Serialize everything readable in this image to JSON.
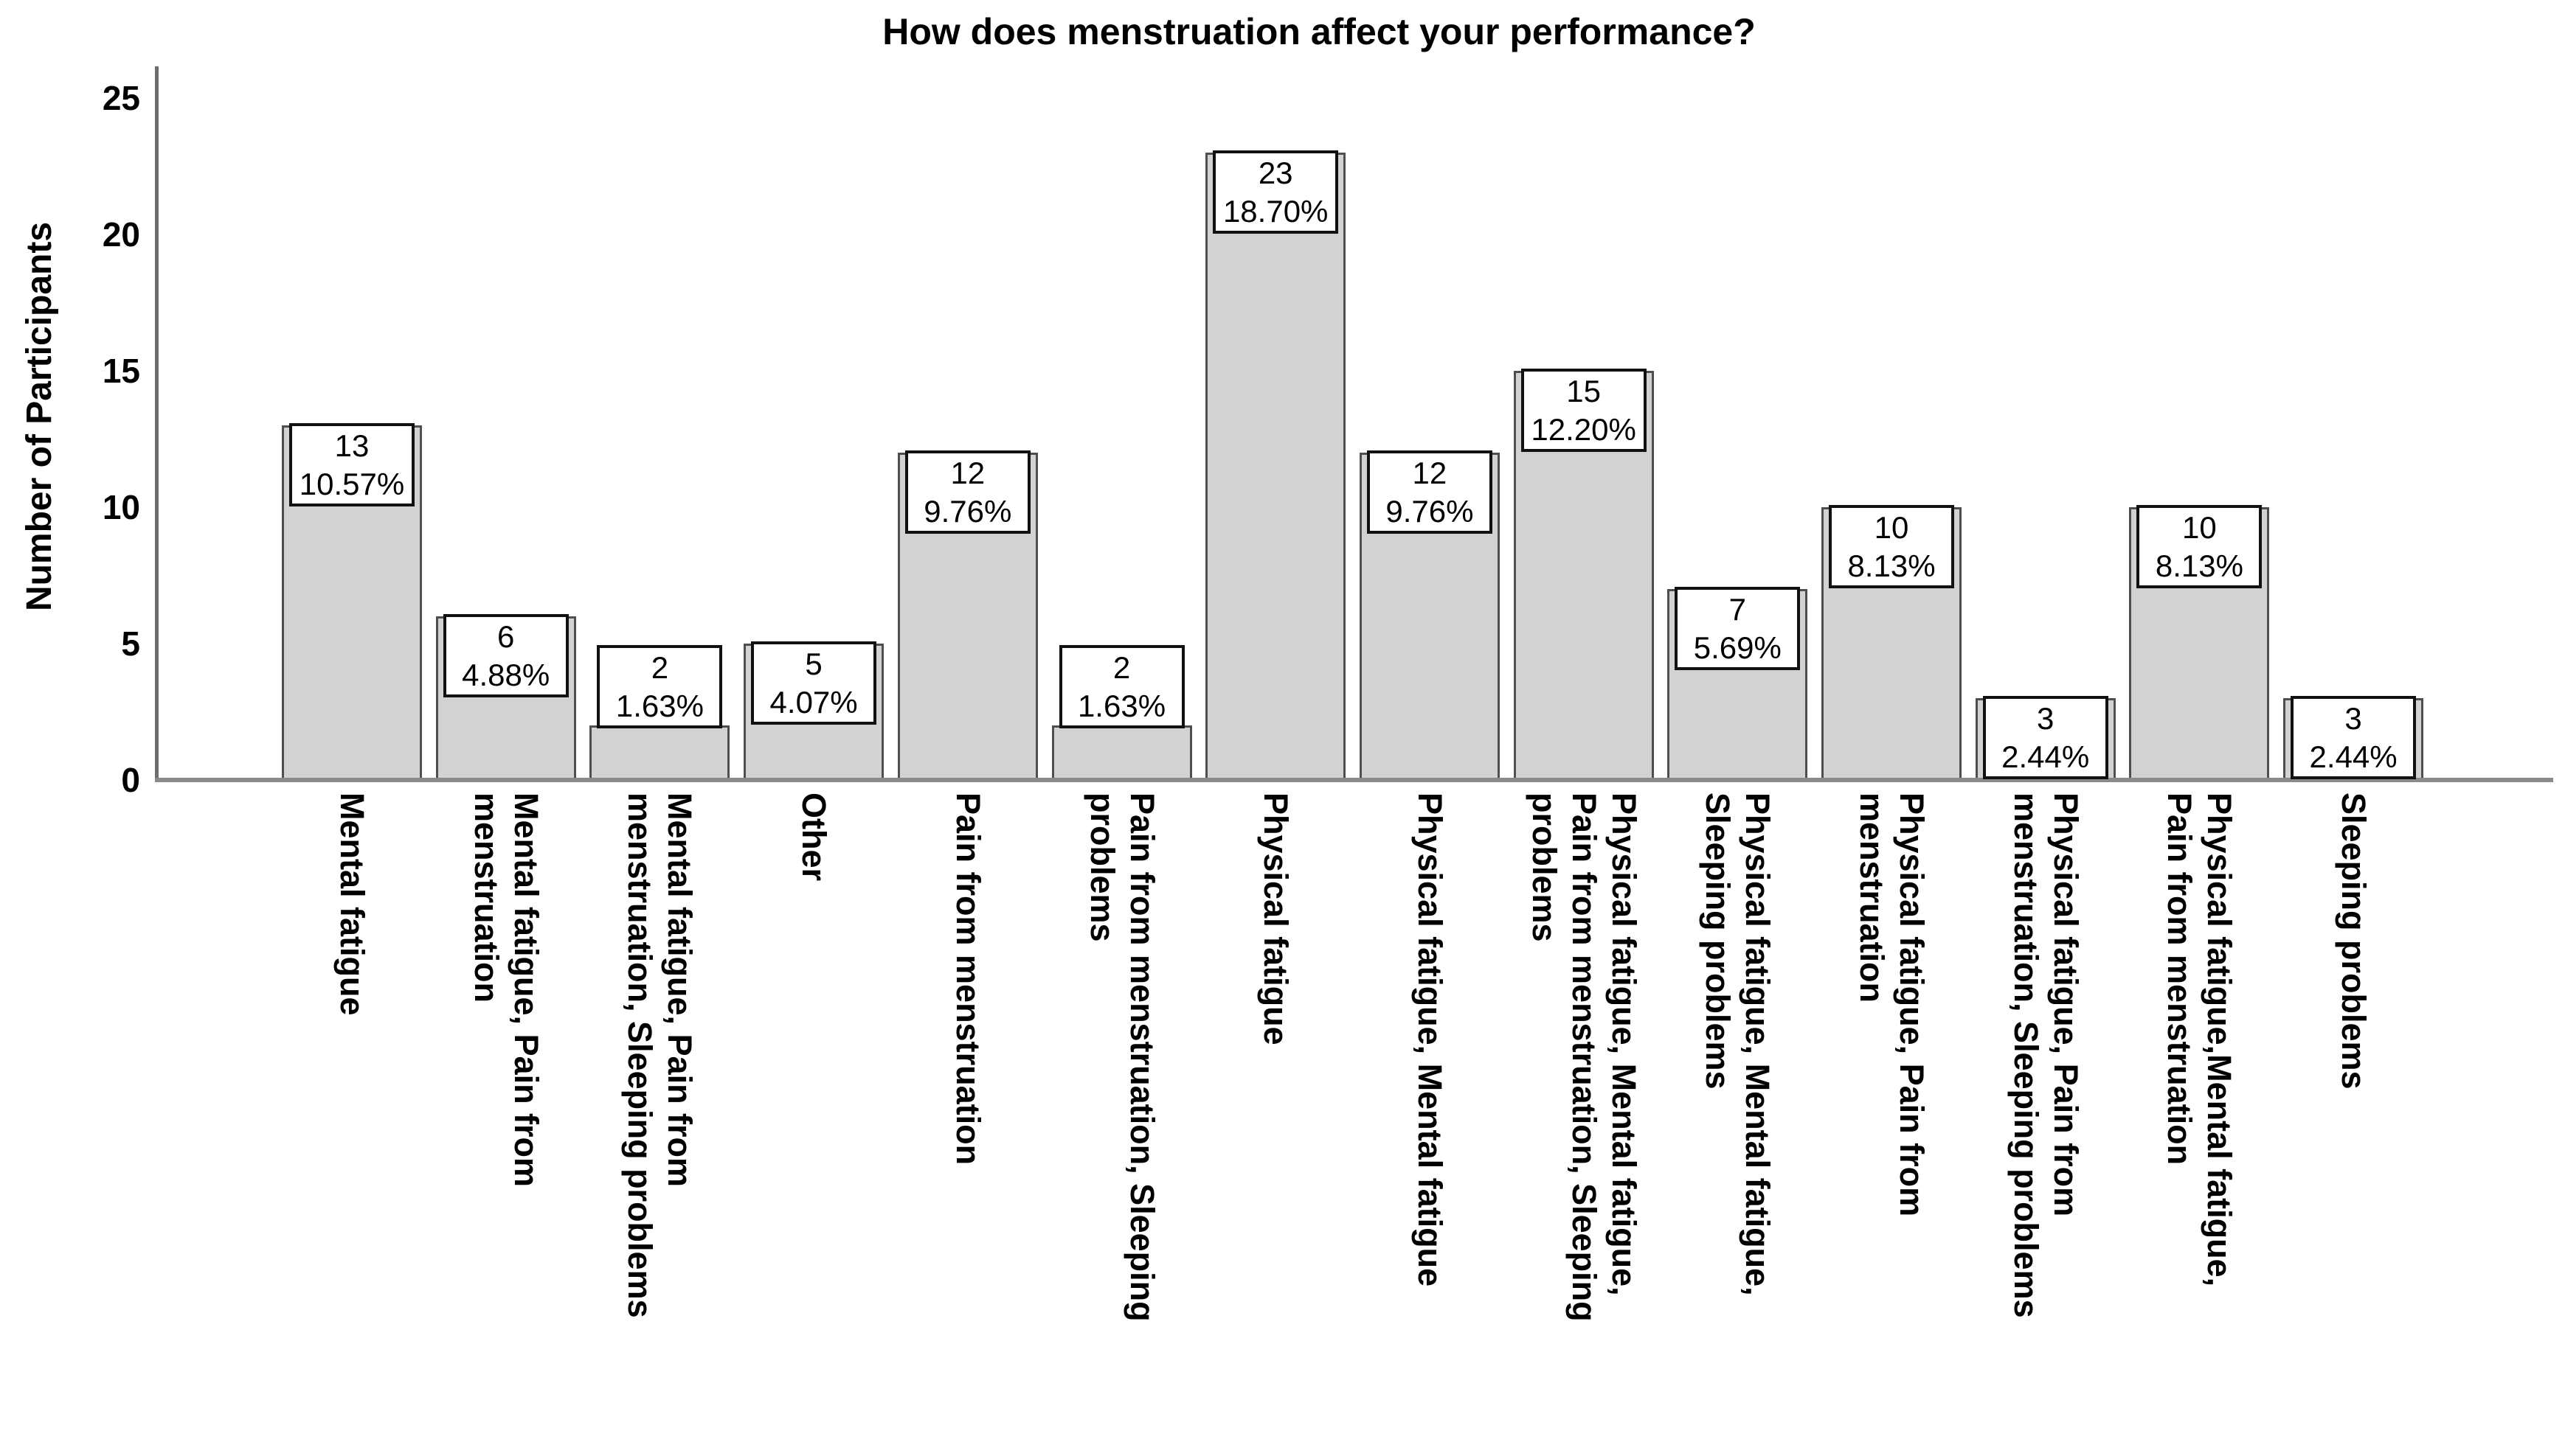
{
  "chart_data": {
    "type": "bar",
    "title": "How does menstruation affect your performance?",
    "ylabel": "Number of Participants",
    "xlabel": "",
    "ylim": [
      0,
      26
    ],
    "yticks": [
      0,
      5,
      10,
      15,
      20,
      25
    ],
    "grid": false,
    "legend": null,
    "bar_fill_color": "#d2d2d2",
    "bar_border_color": "#4f4f4f",
    "axis_color": "#8a8a8a",
    "label_box_border_color": "#111111",
    "label_box_fill_color": "#ffffff",
    "categories": [
      {
        "label": "Mental fatigue",
        "lines": [
          "Mental fatigue"
        ],
        "value": 13,
        "percent": "10.57%"
      },
      {
        "label": "Mental fatigue, Pain from menstruation",
        "lines": [
          "Mental fatigue, Pain from",
          "menstruation"
        ],
        "value": 6,
        "percent": "4.88%"
      },
      {
        "label": "Mental fatigue, Pain from menstruation, Sleeping problems",
        "lines": [
          "Mental fatigue, Pain from",
          "menstruation, Sleeping problems"
        ],
        "value": 2,
        "percent": "1.63%"
      },
      {
        "label": "Other",
        "lines": [
          "Other"
        ],
        "value": 5,
        "percent": "4.07%"
      },
      {
        "label": "Pain from menstruation",
        "lines": [
          "Pain from menstruation"
        ],
        "value": 12,
        "percent": "9.76%"
      },
      {
        "label": "Pain from menstruation, Sleeping problems",
        "lines": [
          "Pain from menstruation, Sleeping",
          "problems"
        ],
        "value": 2,
        "percent": "1.63%"
      },
      {
        "label": "Physical fatigue",
        "lines": [
          "Physical fatigue"
        ],
        "value": 23,
        "percent": "18.70%"
      },
      {
        "label": "Physical fatigue, Mental fatigue",
        "lines": [
          "Physical fatigue, Mental fatigue"
        ],
        "value": 12,
        "percent": "9.76%"
      },
      {
        "label": "Physical fatigue, Mental fatigue, Pain from menstruation, Sleeping problems",
        "lines": [
          "Physical fatigue, Mental fatigue,",
          "Pain from menstruation, Sleeping",
          "problems"
        ],
        "value": 15,
        "percent": "12.20%"
      },
      {
        "label": "Physical fatigue, Mental fatigue, Sleeping problems",
        "lines": [
          "Physical fatigue, Mental fatigue,",
          "Sleeping problems"
        ],
        "value": 7,
        "percent": "5.69%"
      },
      {
        "label": "Physical fatigue, Pain from menstruation",
        "lines": [
          "Physical fatigue, Pain from",
          "menstruation"
        ],
        "value": 10,
        "percent": "8.13%"
      },
      {
        "label": "Physical fatigue, Pain from menstruation, Sleeping problems",
        "lines": [
          "Physical fatigue, Pain from",
          "menstruation, Sleeping problems"
        ],
        "value": 3,
        "percent": "2.44%"
      },
      {
        "label": "Physical fatigue,Mental fatigue, Pain from menstruation",
        "lines": [
          "Physical fatigue,Mental fatigue,",
          "Pain from menstruation"
        ],
        "value": 10,
        "percent": "8.13%"
      },
      {
        "label": "Sleeping problems",
        "lines": [
          "Sleeping problems"
        ],
        "value": 3,
        "percent": "2.44%"
      }
    ]
  }
}
